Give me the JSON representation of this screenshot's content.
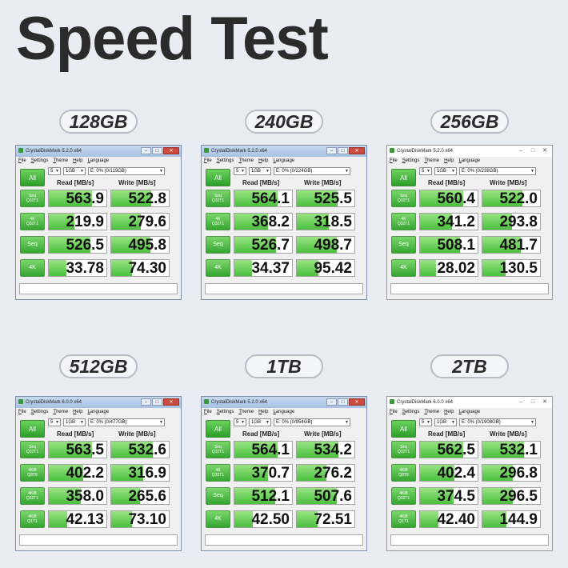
{
  "title": "Speed Test",
  "captions": [
    "128GB",
    "240GB",
    "256GB",
    "512GB",
    "1TB",
    "2TB"
  ],
  "menu": [
    "File",
    "Settings",
    "Theme",
    "Help",
    "Language"
  ],
  "headers": {
    "read": "Read [MB/s]",
    "write": "Write [MB/s]"
  },
  "all_label": "All",
  "window_controls": {
    "minimize": "–",
    "maximize": "□",
    "close": "✕"
  },
  "windows": [
    {
      "caption": "128GB",
      "title": "CrystalDiskMark 5.2.0 x64",
      "style": "aero",
      "count": "5",
      "size": "1GB",
      "drive": "E: 0% (0/119GB)",
      "rows": [
        {
          "label": "Seq\nQ32T1",
          "read": "563.9",
          "write": "522.8",
          "read_fill": 0.75,
          "write_fill": 0.7
        },
        {
          "label": "4K\nQ32T1",
          "read": "219.9",
          "write": "279.6",
          "read_fill": 0.45,
          "write_fill": 0.52
        },
        {
          "label": "Seq",
          "read": "526.5",
          "write": "495.8",
          "read_fill": 0.72,
          "write_fill": 0.68
        },
        {
          "label": "4K",
          "read": "33.78",
          "write": "74.30",
          "read_fill": 0.3,
          "write_fill": 0.36
        }
      ]
    },
    {
      "caption": "240GB",
      "title": "CrystalDiskMark 5.2.0 x64",
      "style": "aero",
      "count": "5",
      "size": "1GB",
      "drive": "E: 0% (0/224GB)",
      "rows": [
        {
          "label": "Seq\nQ32T1",
          "read": "564.1",
          "write": "525.5",
          "read_fill": 0.75,
          "write_fill": 0.71
        },
        {
          "label": "4K\nQ32T1",
          "read": "368.2",
          "write": "318.5",
          "read_fill": 0.58,
          "write_fill": 0.55
        },
        {
          "label": "Seq",
          "read": "526.7",
          "write": "498.7",
          "read_fill": 0.72,
          "write_fill": 0.69
        },
        {
          "label": "4K",
          "read": "34.37",
          "write": "95.42",
          "read_fill": 0.3,
          "write_fill": 0.38
        }
      ]
    },
    {
      "caption": "256GB",
      "title": "CrystalDiskMark 5.2.0 x64",
      "style": "flat",
      "count": "5",
      "size": "1GB",
      "drive": "E: 0% (0/238GB)",
      "rows": [
        {
          "label": "Seq\nQ32T1",
          "read": "560.4",
          "write": "522.0",
          "read_fill": 0.75,
          "write_fill": 0.7
        },
        {
          "label": "4K\nQ32T1",
          "read": "341.2",
          "write": "293.8",
          "read_fill": 0.55,
          "write_fill": 0.52
        },
        {
          "label": "Seq",
          "read": "508.1",
          "write": "481.7",
          "read_fill": 0.7,
          "write_fill": 0.67
        },
        {
          "label": "4K",
          "read": "28.02",
          "write": "130.5",
          "read_fill": 0.28,
          "write_fill": 0.4
        }
      ]
    },
    {
      "caption": "512GB",
      "title": "CrystalDiskMark 6.0.0 x64",
      "style": "aero",
      "count": "5",
      "size": "1GB",
      "drive": "E: 0% (0/477GB)",
      "rows": [
        {
          "label": "Seq\nQ32T1",
          "read": "563.5",
          "write": "532.6",
          "read_fill": 0.75,
          "write_fill": 0.72
        },
        {
          "label": "4KiB\nQ8T8",
          "read": "402.2",
          "write": "316.9",
          "read_fill": 0.6,
          "write_fill": 0.55
        },
        {
          "label": "4KiB\nQ32T1",
          "read": "358.0",
          "write": "265.6",
          "read_fill": 0.56,
          "write_fill": 0.5
        },
        {
          "label": "4KiB\nQ1T1",
          "read": "42.13",
          "write": "73.10",
          "read_fill": 0.32,
          "write_fill": 0.36
        }
      ]
    },
    {
      "caption": "1TB",
      "title": "CrystalDiskMark 5.2.0 x64",
      "style": "aero",
      "count": "5",
      "size": "1GB",
      "drive": "E: 0% (0/954GB)",
      "rows": [
        {
          "label": "Seq\nQ32T1",
          "read": "564.1",
          "write": "534.2",
          "read_fill": 0.75,
          "write_fill": 0.72
        },
        {
          "label": "4K\nQ32T1",
          "read": "370.7",
          "write": "276.2",
          "read_fill": 0.58,
          "write_fill": 0.51
        },
        {
          "label": "Seq",
          "read": "512.1",
          "write": "507.6",
          "read_fill": 0.71,
          "write_fill": 0.7
        },
        {
          "label": "4K",
          "read": "42.50",
          "write": "72.51",
          "read_fill": 0.32,
          "write_fill": 0.36
        }
      ]
    },
    {
      "caption": "2TB",
      "title": "CrystalDiskMark 6.0.0 x64",
      "style": "flat",
      "count": "5",
      "size": "1GB",
      "drive": "E: 0% (0/1908GB)",
      "rows": [
        {
          "label": "Seq\nQ32T1",
          "read": "562.5",
          "write": "532.1",
          "read_fill": 0.75,
          "write_fill": 0.72
        },
        {
          "label": "4KiB\nQ8T8",
          "read": "402.4",
          "write": "296.8",
          "read_fill": 0.6,
          "write_fill": 0.53
        },
        {
          "label": "4KiB\nQ32T1",
          "read": "374.5",
          "write": "296.5",
          "read_fill": 0.58,
          "write_fill": 0.53
        },
        {
          "label": "4KiB\nQ1T1",
          "read": "42.40",
          "write": "144.9",
          "read_fill": 0.32,
          "write_fill": 0.42
        }
      ]
    }
  ],
  "colors": {
    "background": "#e9ecf3",
    "bar_green": "#4bbf3e",
    "button_green": "#2c9f29",
    "title_text": "#2b2b2b"
  }
}
